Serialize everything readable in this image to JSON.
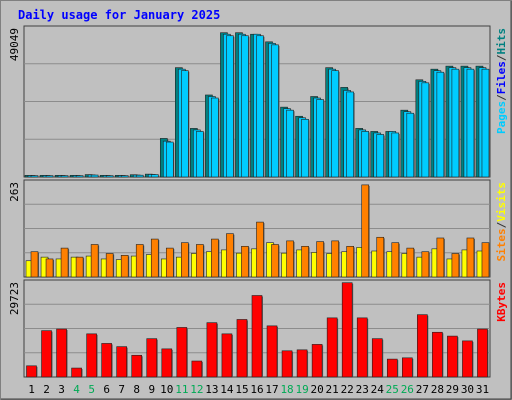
{
  "chart_data": [
    {
      "type": "bar",
      "title": "Daily usage for January 2025",
      "panel": "top",
      "ymax_label": "49049",
      "ylim": [
        0,
        49049
      ],
      "categories": [
        "1",
        "2",
        "3",
        "4",
        "5",
        "6",
        "7",
        "8",
        "9",
        "10",
        "11",
        "12",
        "13",
        "14",
        "15",
        "16",
        "17",
        "18",
        "19",
        "20",
        "21",
        "22",
        "23",
        "24",
        "25",
        "26",
        "27",
        "28",
        "29",
        "30",
        "31"
      ],
      "weekend_days": [
        "4",
        "5",
        "11",
        "12",
        "18",
        "19",
        "25",
        "26"
      ],
      "legend": [
        {
          "text": "Pages",
          "color": "#00ccff"
        },
        {
          "text": "/",
          "color": "#333333"
        },
        {
          "text": "Files",
          "color": "#0000ff"
        },
        {
          "text": "/",
          "color": "#333333"
        },
        {
          "text": "Hits",
          "color": "#008080"
        }
      ],
      "series": [
        {
          "name": "Hits",
          "color": "#008080",
          "values": [
            550,
            550,
            550,
            550,
            800,
            550,
            550,
            750,
            950,
            12700,
            36000,
            16000,
            27000,
            47500,
            47500,
            47000,
            44500,
            23000,
            20000,
            26500,
            36000,
            29500,
            16000,
            15000,
            15000,
            22000,
            32000,
            35500,
            36500,
            36500,
            36500
          ]
        },
        {
          "name": "Files",
          "color": "#00ccff",
          "values": [
            500,
            500,
            500,
            500,
            700,
            500,
            500,
            650,
            850,
            11800,
            35500,
            15500,
            26500,
            47000,
            47000,
            47000,
            44000,
            22500,
            19500,
            26000,
            35500,
            28500,
            15500,
            14500,
            15000,
            21500,
            31500,
            35000,
            36000,
            36000,
            36000
          ]
        },
        {
          "name": "Pages",
          "color": "#00ccff",
          "values": [
            450,
            450,
            450,
            450,
            650,
            450,
            450,
            600,
            800,
            11500,
            35000,
            15000,
            26000,
            46500,
            46500,
            46500,
            43500,
            22000,
            19000,
            25500,
            35000,
            28000,
            15000,
            14000,
            14500,
            21000,
            31000,
            34500,
            35500,
            35500,
            35500
          ]
        }
      ]
    },
    {
      "type": "bar",
      "panel": "middle",
      "ymax_label": "263",
      "ylim": [
        0,
        263
      ],
      "legend": [
        {
          "text": "Sites",
          "color": "#ff8000"
        },
        {
          "text": "/",
          "color": "#333333"
        },
        {
          "text": "Visits",
          "color": "#ffff00"
        }
      ],
      "series": [
        {
          "name": "Visits",
          "color": "#ffff00",
          "values": [
            45,
            55,
            50,
            55,
            58,
            50,
            48,
            58,
            62,
            50,
            55,
            65,
            70,
            75,
            66,
            78,
            95,
            66,
            75,
            68,
            65,
            70,
            82,
            72,
            70,
            65,
            55,
            78,
            50,
            75,
            72
          ]
        },
        {
          "name": "Sites",
          "color": "#ff8000",
          "values": [
            70,
            50,
            80,
            55,
            90,
            65,
            60,
            90,
            105,
            80,
            95,
            90,
            105,
            120,
            85,
            152,
            90,
            100,
            85,
            98,
            100,
            85,
            255,
            110,
            95,
            80,
            70,
            108,
            65,
            108,
            95
          ]
        }
      ]
    },
    {
      "type": "bar",
      "panel": "bottom",
      "ymax_label": "29723",
      "ylim": [
        0,
        29723
      ],
      "legend": [
        {
          "text": "KBytes",
          "color": "#ff0000"
        }
      ],
      "series": [
        {
          "name": "KBytes",
          "color": "#ff0000",
          "values": [
            3500,
            14500,
            15000,
            2800,
            13500,
            10500,
            9500,
            6800,
            12000,
            8800,
            15500,
            5000,
            17000,
            13500,
            18000,
            25500,
            16000,
            8200,
            8500,
            10200,
            18500,
            29500,
            18500,
            12000,
            5600,
            6000,
            19500,
            14000,
            12800,
            11300,
            15000
          ]
        }
      ]
    }
  ],
  "colors": {
    "frame": "#c0c0c0",
    "plot_bg": "#c0c0c0",
    "title_color": "#0000ff",
    "weekday_label": "#000000",
    "weekend_label": "#00aa55",
    "gridline": "#8c8c8c"
  }
}
